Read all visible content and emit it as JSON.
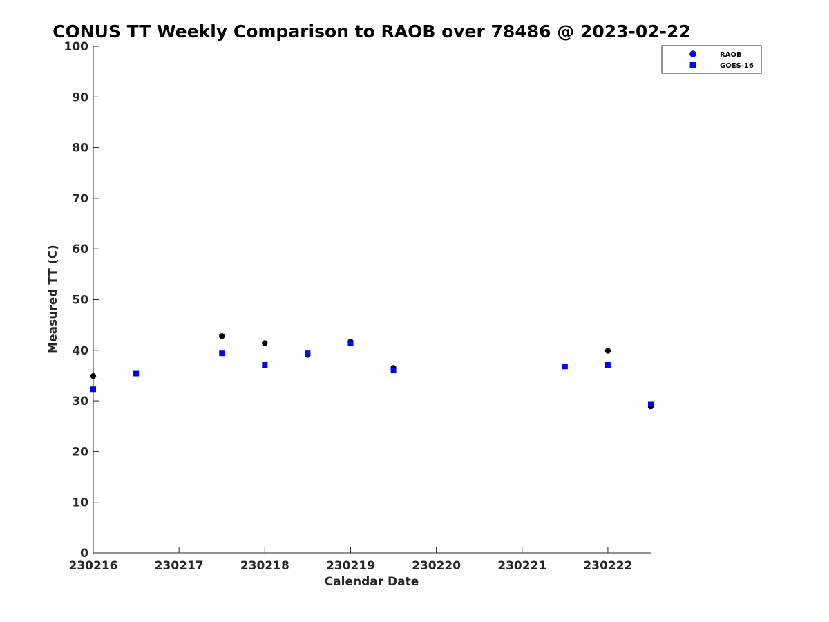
{
  "chart_data": {
    "type": "scatter",
    "title": "CONUS TT Weekly Comparison to RAOB over 78486 @ 2023-02-22",
    "xlabel": "Calendar Date",
    "ylabel": "Measured TT (C)",
    "xlim": [
      "230216",
      "230222 12Z"
    ],
    "ylim": [
      0,
      100
    ],
    "x_tick_labels": [
      "230216",
      "230217",
      "230218",
      "230219",
      "230220",
      "230221",
      "230222"
    ],
    "y_ticks": [
      0,
      10,
      20,
      30,
      40,
      50,
      60,
      70,
      80,
      90,
      100
    ],
    "grid": false,
    "legend_position": "top-right",
    "series": [
      {
        "name": "RAOB",
        "marker": "circle",
        "color": "#000000",
        "legend_color": "#0000ff",
        "x": [
          "230216 00Z",
          "230217 12Z",
          "230218 00Z",
          "230218 12Z",
          "230219 00Z",
          "230219 12Z",
          "230222 00Z",
          "230222 12Z"
        ],
        "y": [
          34.9,
          42.8,
          41.4,
          39.1,
          41.7,
          36.5,
          39.9,
          28.9
        ]
      },
      {
        "name": "GOES-16",
        "marker": "square",
        "color": "#0000ff",
        "legend_color": "#0000ff",
        "x": [
          "230216 00Z",
          "230216 12Z",
          "230217 12Z",
          "230218 00Z",
          "230218 12Z",
          "230219 00Z",
          "230219 12Z",
          "230221 12Z",
          "230222 00Z",
          "230222 12Z"
        ],
        "y": [
          32.3,
          35.4,
          39.4,
          37.1,
          39.4,
          41.4,
          36.0,
          36.8,
          37.1,
          29.4
        ]
      }
    ]
  }
}
